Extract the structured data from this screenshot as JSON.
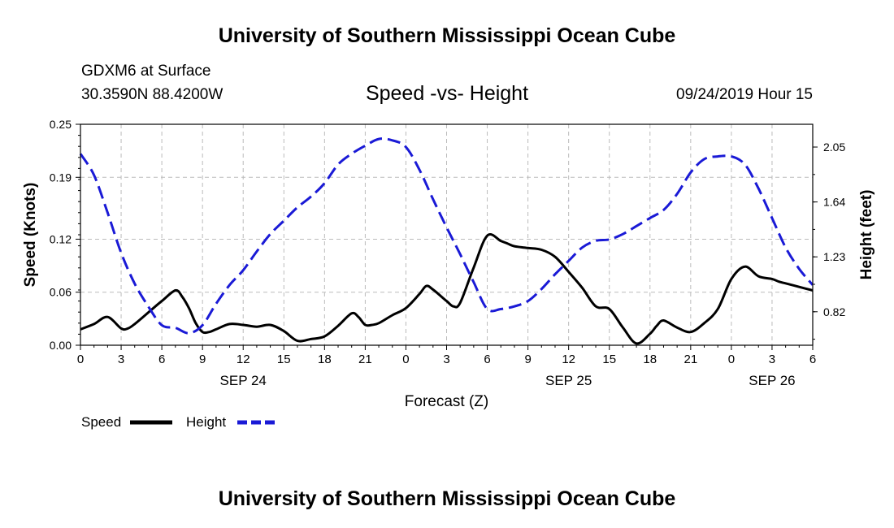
{
  "header": {
    "title": "University of Southern Mississippi Ocean Cube",
    "station": "GDXM6 at Surface",
    "location": "30.3590N 88.4200W",
    "chart_title": "Speed -vs- Height",
    "datetime": "09/24/2019 Hour 15"
  },
  "footer": {
    "title": "University of Southern Mississippi Ocean Cube"
  },
  "colors": {
    "speed": "#000000",
    "height": "#1a1ad6",
    "grid": "#bbbbbb"
  },
  "chart_data": {
    "type": "line",
    "title": "Speed -vs- Height",
    "xlabel": "Forecast (Z)",
    "ylabel": "Speed (Knots)",
    "y2label": "Height (feet)",
    "xlim": [
      0,
      54
    ],
    "ylim": [
      0,
      0.25
    ],
    "y2lim": [
      0.57,
      2.22
    ],
    "x_ticks": [
      0,
      3,
      6,
      9,
      12,
      15,
      18,
      21,
      24,
      27,
      30,
      33,
      36,
      39,
      42,
      45,
      48,
      51,
      54
    ],
    "x_tick_labels": [
      "0",
      "3",
      "6",
      "9",
      "12",
      "15",
      "18",
      "21",
      "0",
      "3",
      "6",
      "9",
      "12",
      "15",
      "18",
      "21",
      "0",
      "3",
      "6"
    ],
    "date_labels": [
      {
        "x": 12,
        "label": "SEP 24"
      },
      {
        "x": 36,
        "label": "SEP 25"
      },
      {
        "x": 51,
        "label": "SEP 26"
      }
    ],
    "y_ticks": [
      0,
      0.06,
      0.12,
      0.19,
      0.25
    ],
    "y_tick_labels": [
      "0.00",
      "0.06",
      "0.12",
      "0.19",
      "0.25"
    ],
    "y2_ticks": [
      0.82,
      1.23,
      1.64,
      2.05
    ],
    "y2_tick_labels": [
      "0.82",
      "1.23",
      "1.64",
      "2.05"
    ],
    "grid": true,
    "legend": {
      "placement": "bottom-left",
      "items": [
        "Speed",
        "Height"
      ]
    },
    "series": [
      {
        "name": "Speed",
        "axis": "left",
        "style": "solid",
        "x": [
          0,
          1,
          2,
          3,
          3.5,
          4,
          5,
          6,
          7,
          7.5,
          8,
          8.5,
          9,
          9.5,
          10,
          11,
          12,
          13,
          14,
          15,
          16,
          17,
          18,
          19,
          20,
          20.5,
          21,
          21.5,
          22,
          23,
          24,
          25,
          25.5,
          26,
          27,
          27.5,
          28,
          29,
          30,
          31,
          31.5,
          32,
          33,
          34,
          35,
          36,
          37,
          38,
          39,
          40,
          41,
          42,
          42.5,
          43,
          44,
          45,
          46,
          47,
          48,
          49,
          50,
          51,
          51.5,
          52,
          53,
          54
        ],
        "values": [
          0.018,
          0.024,
          0.032,
          0.019,
          0.019,
          0.024,
          0.037,
          0.05,
          0.062,
          0.055,
          0.042,
          0.025,
          0.015,
          0.015,
          0.018,
          0.024,
          0.023,
          0.021,
          0.023,
          0.016,
          0.005,
          0.007,
          0.01,
          0.022,
          0.036,
          0.032,
          0.023,
          0.023,
          0.025,
          0.034,
          0.042,
          0.058,
          0.067,
          0.063,
          0.05,
          0.044,
          0.048,
          0.088,
          0.124,
          0.118,
          0.115,
          0.112,
          0.11,
          0.108,
          0.1,
          0.083,
          0.065,
          0.044,
          0.041,
          0.02,
          0.002,
          0.013,
          0.022,
          0.028,
          0.02,
          0.015,
          0.025,
          0.041,
          0.075,
          0.089,
          0.078,
          0.075,
          0.072,
          0.07,
          0.066,
          0.062
        ]
      },
      {
        "name": "Height",
        "axis": "right",
        "style": "dashed",
        "x": [
          0,
          1,
          2,
          3,
          4,
          5,
          6,
          7,
          8,
          9,
          10,
          11,
          12,
          13,
          14,
          15,
          16,
          17,
          18,
          19,
          20,
          21,
          22,
          23,
          24,
          25,
          26,
          27,
          28,
          29,
          30,
          31,
          32,
          33,
          34,
          35,
          36,
          37,
          38,
          39,
          40,
          41,
          42,
          43,
          44,
          45,
          46,
          47,
          48,
          49,
          50,
          51,
          52,
          53,
          54
        ],
        "values": [
          2.0,
          1.84,
          1.56,
          1.26,
          1.03,
          0.86,
          0.72,
          0.7,
          0.66,
          0.72,
          0.88,
          1.02,
          1.13,
          1.27,
          1.4,
          1.5,
          1.6,
          1.68,
          1.78,
          1.92,
          2.0,
          2.06,
          2.11,
          2.1,
          2.05,
          1.88,
          1.66,
          1.45,
          1.25,
          1.04,
          0.84,
          0.84,
          0.86,
          0.9,
          0.99,
          1.1,
          1.2,
          1.3,
          1.35,
          1.36,
          1.4,
          1.46,
          1.52,
          1.58,
          1.7,
          1.86,
          1.96,
          1.98,
          1.98,
          1.92,
          1.74,
          1.52,
          1.3,
          1.14,
          1.02
        ]
      }
    ]
  }
}
